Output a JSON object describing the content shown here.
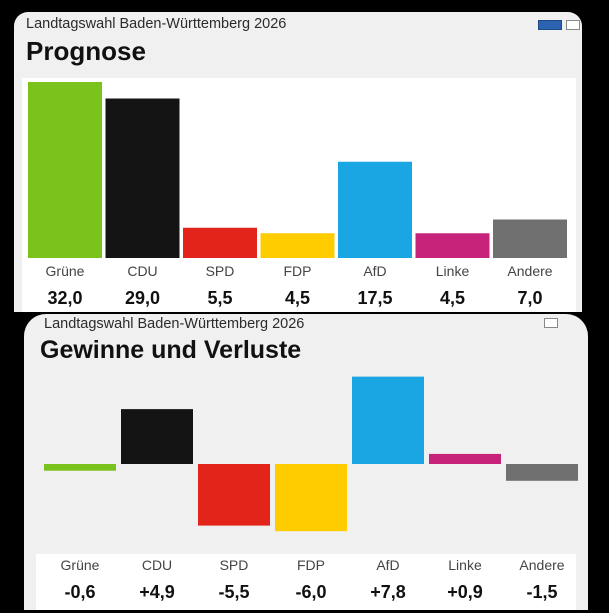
{
  "panels": [
    {
      "supertitle": "Landtagswahl Baden-Württemberg 2026",
      "title": "Prognose"
    },
    {
      "supertitle": "Landtagswahl Baden-Württemberg 2026",
      "title": "Gewinne und Verluste"
    }
  ],
  "icons": [
    "window-tabs-icon",
    "window-tab-icon"
  ],
  "chart_data": [
    {
      "type": "bar",
      "title": "Prognose",
      "categories": [
        "Grüne",
        "CDU",
        "SPD",
        "FDP",
        "AfD",
        "Linke",
        "Andere"
      ],
      "values": [
        32.0,
        29.0,
        5.5,
        4.5,
        17.5,
        4.5,
        7.0
      ],
      "value_labels": [
        "32,0",
        "29,0",
        "5,5",
        "4,5",
        "17,5",
        "4,5",
        "7,0"
      ],
      "colors": [
        "#7ac21c",
        "#141414",
        "#e3241b",
        "#ffcc00",
        "#19a6e3",
        "#c8237b",
        "#707070"
      ],
      "ylim": [
        0,
        32
      ]
    },
    {
      "type": "bar",
      "title": "Gewinne und Verluste",
      "categories": [
        "Grüne",
        "CDU",
        "SPD",
        "FDP",
        "AfD",
        "Linke",
        "Andere"
      ],
      "values": [
        -0.6,
        4.9,
        -5.5,
        -6.0,
        7.8,
        0.9,
        -1.5
      ],
      "value_labels": [
        "-0,6",
        "+4,9",
        "-5,5",
        "-6,0",
        "+7,8",
        "+0,9",
        "-1,5"
      ],
      "colors": [
        "#7ac21c",
        "#141414",
        "#e3241b",
        "#ffcc00",
        "#19a6e3",
        "#c8237b",
        "#707070"
      ],
      "ylim": [
        -6,
        8
      ]
    }
  ]
}
